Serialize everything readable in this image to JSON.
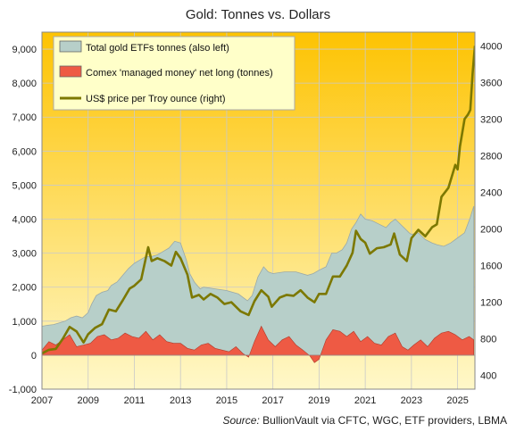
{
  "chart_data": {
    "type": "area",
    "title": "Gold: Tonnes vs. Dollars",
    "source_prefix": "Source:",
    "source_text": " BullionVault via CFTC, WGC, ETF providers,  LBMA",
    "x_ticks": [
      "2007",
      "2009",
      "2011",
      "2013",
      "2015",
      "2017",
      "2019",
      "2021",
      "2023",
      "2025"
    ],
    "x_range": [
      2007,
      2025.75
    ],
    "y_left": {
      "ticks": [
        "-1,000",
        "0",
        "1,000",
        "2,000",
        "3,000",
        "4,000",
        "5,000",
        "6,000",
        "7,000",
        "8,000",
        "9,000"
      ],
      "range": [
        -1000,
        9500
      ]
    },
    "y_right": {
      "ticks": [
        "400",
        "800",
        "1200",
        "1600",
        "2000",
        "2400",
        "2800",
        "3200",
        "3600",
        "4000"
      ],
      "range": [
        250,
        4150
      ]
    },
    "legend": {
      "etf": "Total gold ETFs tonnes (also left)",
      "comex": "Comex 'managed money' net long (tonnes)",
      "price": "US$ price per Troy ounce (right)"
    },
    "colors": {
      "etf_fill": "#b7cfc9",
      "etf_edge": "#9aa9a8",
      "comex_fill": "#ee5a44",
      "comex_edge": "#b03a2a",
      "price_line": "#7c7800",
      "bg_top": "#fdc302",
      "bg_bottom": "#fff8c9",
      "legend_bg": "#ffffc9"
    },
    "series": [
      {
        "name": "Total gold ETFs tonnes (also left)",
        "x": [
          2007.0,
          2007.25,
          2007.5,
          2007.75,
          2008.0,
          2008.25,
          2008.5,
          2008.75,
          2009.0,
          2009.15,
          2009.35,
          2009.6,
          2009.85,
          2010.0,
          2010.25,
          2010.5,
          2010.75,
          2011.0,
          2011.25,
          2011.5,
          2011.75,
          2012.0,
          2012.25,
          2012.5,
          2012.75,
          2013.0,
          2013.25,
          2013.4,
          2013.6,
          2013.85,
          2014.0,
          2014.5,
          2015.0,
          2015.5,
          2015.9,
          2016.1,
          2016.35,
          2016.6,
          2016.8,
          2017.0,
          2017.5,
          2018.0,
          2018.5,
          2018.75,
          2019.0,
          2019.3,
          2019.55,
          2019.75,
          2020.0,
          2020.2,
          2020.4,
          2020.6,
          2020.8,
          2021.0,
          2021.3,
          2021.6,
          2021.9,
          2022.1,
          2022.3,
          2022.6,
          2022.9,
          2023.0,
          2023.3,
          2023.6,
          2023.9,
          2024.1,
          2024.4,
          2024.7,
          2025.0,
          2025.3,
          2025.55,
          2025.7
        ],
        "values": [
          850,
          880,
          900,
          950,
          1000,
          1100,
          1150,
          1100,
          1250,
          1500,
          1750,
          1850,
          1900,
          2050,
          2150,
          2350,
          2550,
          2700,
          2800,
          2900,
          2900,
          2950,
          3050,
          3150,
          3350,
          3300,
          2800,
          2400,
          2150,
          1950,
          2000,
          1950,
          1900,
          1800,
          1600,
          1750,
          2300,
          2600,
          2450,
          2400,
          2450,
          2450,
          2350,
          2400,
          2500,
          2600,
          3000,
          3000,
          3100,
          3300,
          3700,
          3900,
          4150,
          4000,
          3950,
          3850,
          3750,
          3900,
          4000,
          3800,
          3600,
          3550,
          3600,
          3400,
          3300,
          3250,
          3200,
          3300,
          3450,
          3600,
          4050,
          4380
        ]
      },
      {
        "name": "Comex 'managed money' net long (tonnes)",
        "x": [
          2007.0,
          2007.3,
          2007.6,
          2007.9,
          2008.2,
          2008.5,
          2008.8,
          2009.1,
          2009.4,
          2009.7,
          2010.0,
          2010.3,
          2010.6,
          2010.9,
          2011.2,
          2011.5,
          2011.8,
          2012.1,
          2012.4,
          2012.7,
          2013.0,
          2013.3,
          2013.6,
          2013.9,
          2014.2,
          2014.5,
          2014.8,
          2015.1,
          2015.4,
          2015.7,
          2015.95,
          2016.2,
          2016.5,
          2016.8,
          2017.1,
          2017.4,
          2017.7,
          2018.0,
          2018.3,
          2018.6,
          2018.8,
          2019.0,
          2019.3,
          2019.6,
          2019.9,
          2020.2,
          2020.5,
          2020.8,
          2021.1,
          2021.4,
          2021.7,
          2022.0,
          2022.3,
          2022.6,
          2022.85,
          2023.1,
          2023.4,
          2023.7,
          2024.0,
          2024.3,
          2024.6,
          2024.9,
          2025.2,
          2025.5,
          2025.7
        ],
        "values": [
          150,
          400,
          300,
          450,
          600,
          250,
          300,
          350,
          550,
          600,
          450,
          500,
          650,
          550,
          500,
          700,
          450,
          600,
          400,
          350,
          350,
          200,
          150,
          300,
          350,
          200,
          150,
          100,
          250,
          50,
          -60,
          400,
          850,
          450,
          250,
          450,
          550,
          300,
          150,
          -20,
          -220,
          -120,
          450,
          750,
          700,
          550,
          700,
          400,
          550,
          350,
          300,
          550,
          650,
          250,
          150,
          300,
          450,
          250,
          500,
          650,
          700,
          600,
          450,
          550,
          450
        ]
      },
      {
        "name": "US$ price per Troy ounce (right)",
        "x": [
          2007.0,
          2007.3,
          2007.6,
          2007.9,
          2008.2,
          2008.5,
          2008.8,
          2009.0,
          2009.3,
          2009.6,
          2009.9,
          2010.2,
          2010.5,
          2010.8,
          2011.0,
          2011.3,
          2011.6,
          2011.75,
          2012.0,
          2012.3,
          2012.6,
          2012.8,
          2013.0,
          2013.3,
          2013.5,
          2013.8,
          2014.0,
          2014.3,
          2014.6,
          2014.9,
          2015.2,
          2015.6,
          2015.95,
          2016.2,
          2016.5,
          2016.8,
          2016.95,
          2017.3,
          2017.6,
          2017.9,
          2018.2,
          2018.5,
          2018.8,
          2019.0,
          2019.3,
          2019.6,
          2019.9,
          2020.2,
          2020.45,
          2020.6,
          2020.8,
          2021.0,
          2021.2,
          2021.5,
          2021.8,
          2022.1,
          2022.25,
          2022.5,
          2022.8,
          2023.0,
          2023.3,
          2023.6,
          2023.9,
          2024.1,
          2024.3,
          2024.6,
          2024.9,
          2025.0,
          2025.1,
          2025.3,
          2025.45,
          2025.55,
          2025.65,
          2025.75
        ],
        "values": [
          640,
          680,
          690,
          800,
          930,
          880,
          760,
          850,
          920,
          960,
          1120,
          1100,
          1220,
          1350,
          1380,
          1450,
          1800,
          1650,
          1680,
          1650,
          1600,
          1750,
          1680,
          1500,
          1250,
          1280,
          1230,
          1290,
          1250,
          1180,
          1200,
          1100,
          1060,
          1210,
          1330,
          1260,
          1150,
          1250,
          1280,
          1270,
          1330,
          1250,
          1200,
          1290,
          1290,
          1480,
          1480,
          1600,
          1740,
          1980,
          1890,
          1850,
          1730,
          1790,
          1800,
          1830,
          1950,
          1720,
          1650,
          1900,
          1990,
          1920,
          2020,
          2050,
          2350,
          2450,
          2700,
          2650,
          2900,
          3200,
          3250,
          3300,
          3700,
          4000
        ]
      }
    ]
  }
}
